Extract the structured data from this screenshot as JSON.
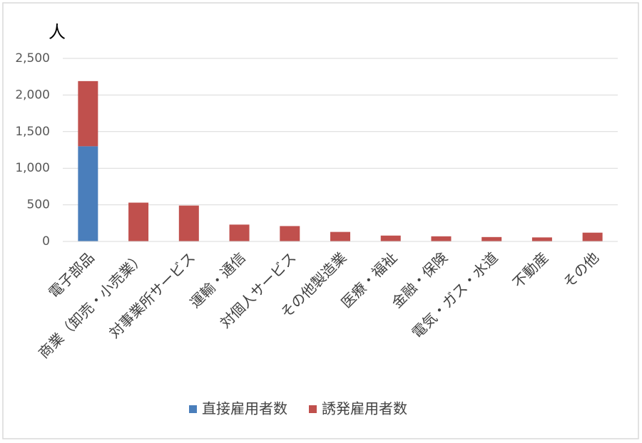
{
  "chart_data": {
    "type": "stacked_bar",
    "y_label": "人",
    "categories": [
      "電子部品",
      "商業（卸売・小売業）",
      "対事業所サービス",
      "運輸・通信",
      "対個人サービス",
      "その他製造業",
      "医療・福祉",
      "金融・保険",
      "電気・ガス・水道",
      "不動産",
      "その他"
    ],
    "series": [
      {
        "name": "直接雇用者数",
        "color": "#4a7ebb",
        "values": [
          1300,
          0,
          0,
          0,
          0,
          0,
          0,
          0,
          0,
          0,
          0
        ]
      },
      {
        "name": "誘発雇用者数",
        "color": "#c0504d",
        "values": [
          890,
          530,
          490,
          230,
          210,
          130,
          80,
          70,
          60,
          55,
          120
        ]
      }
    ],
    "ylim": [
      0,
      2500
    ],
    "yticks": [
      0,
      500,
      {
        "value": 1000,
        "label": "1,000"
      },
      {
        "value": 1500,
        "label": "1,500"
      },
      {
        "value": 2000,
        "label": "2,000"
      },
      {
        "value": 2500,
        "label": "2,500"
      }
    ],
    "grid": true,
    "legend": "bottom"
  }
}
